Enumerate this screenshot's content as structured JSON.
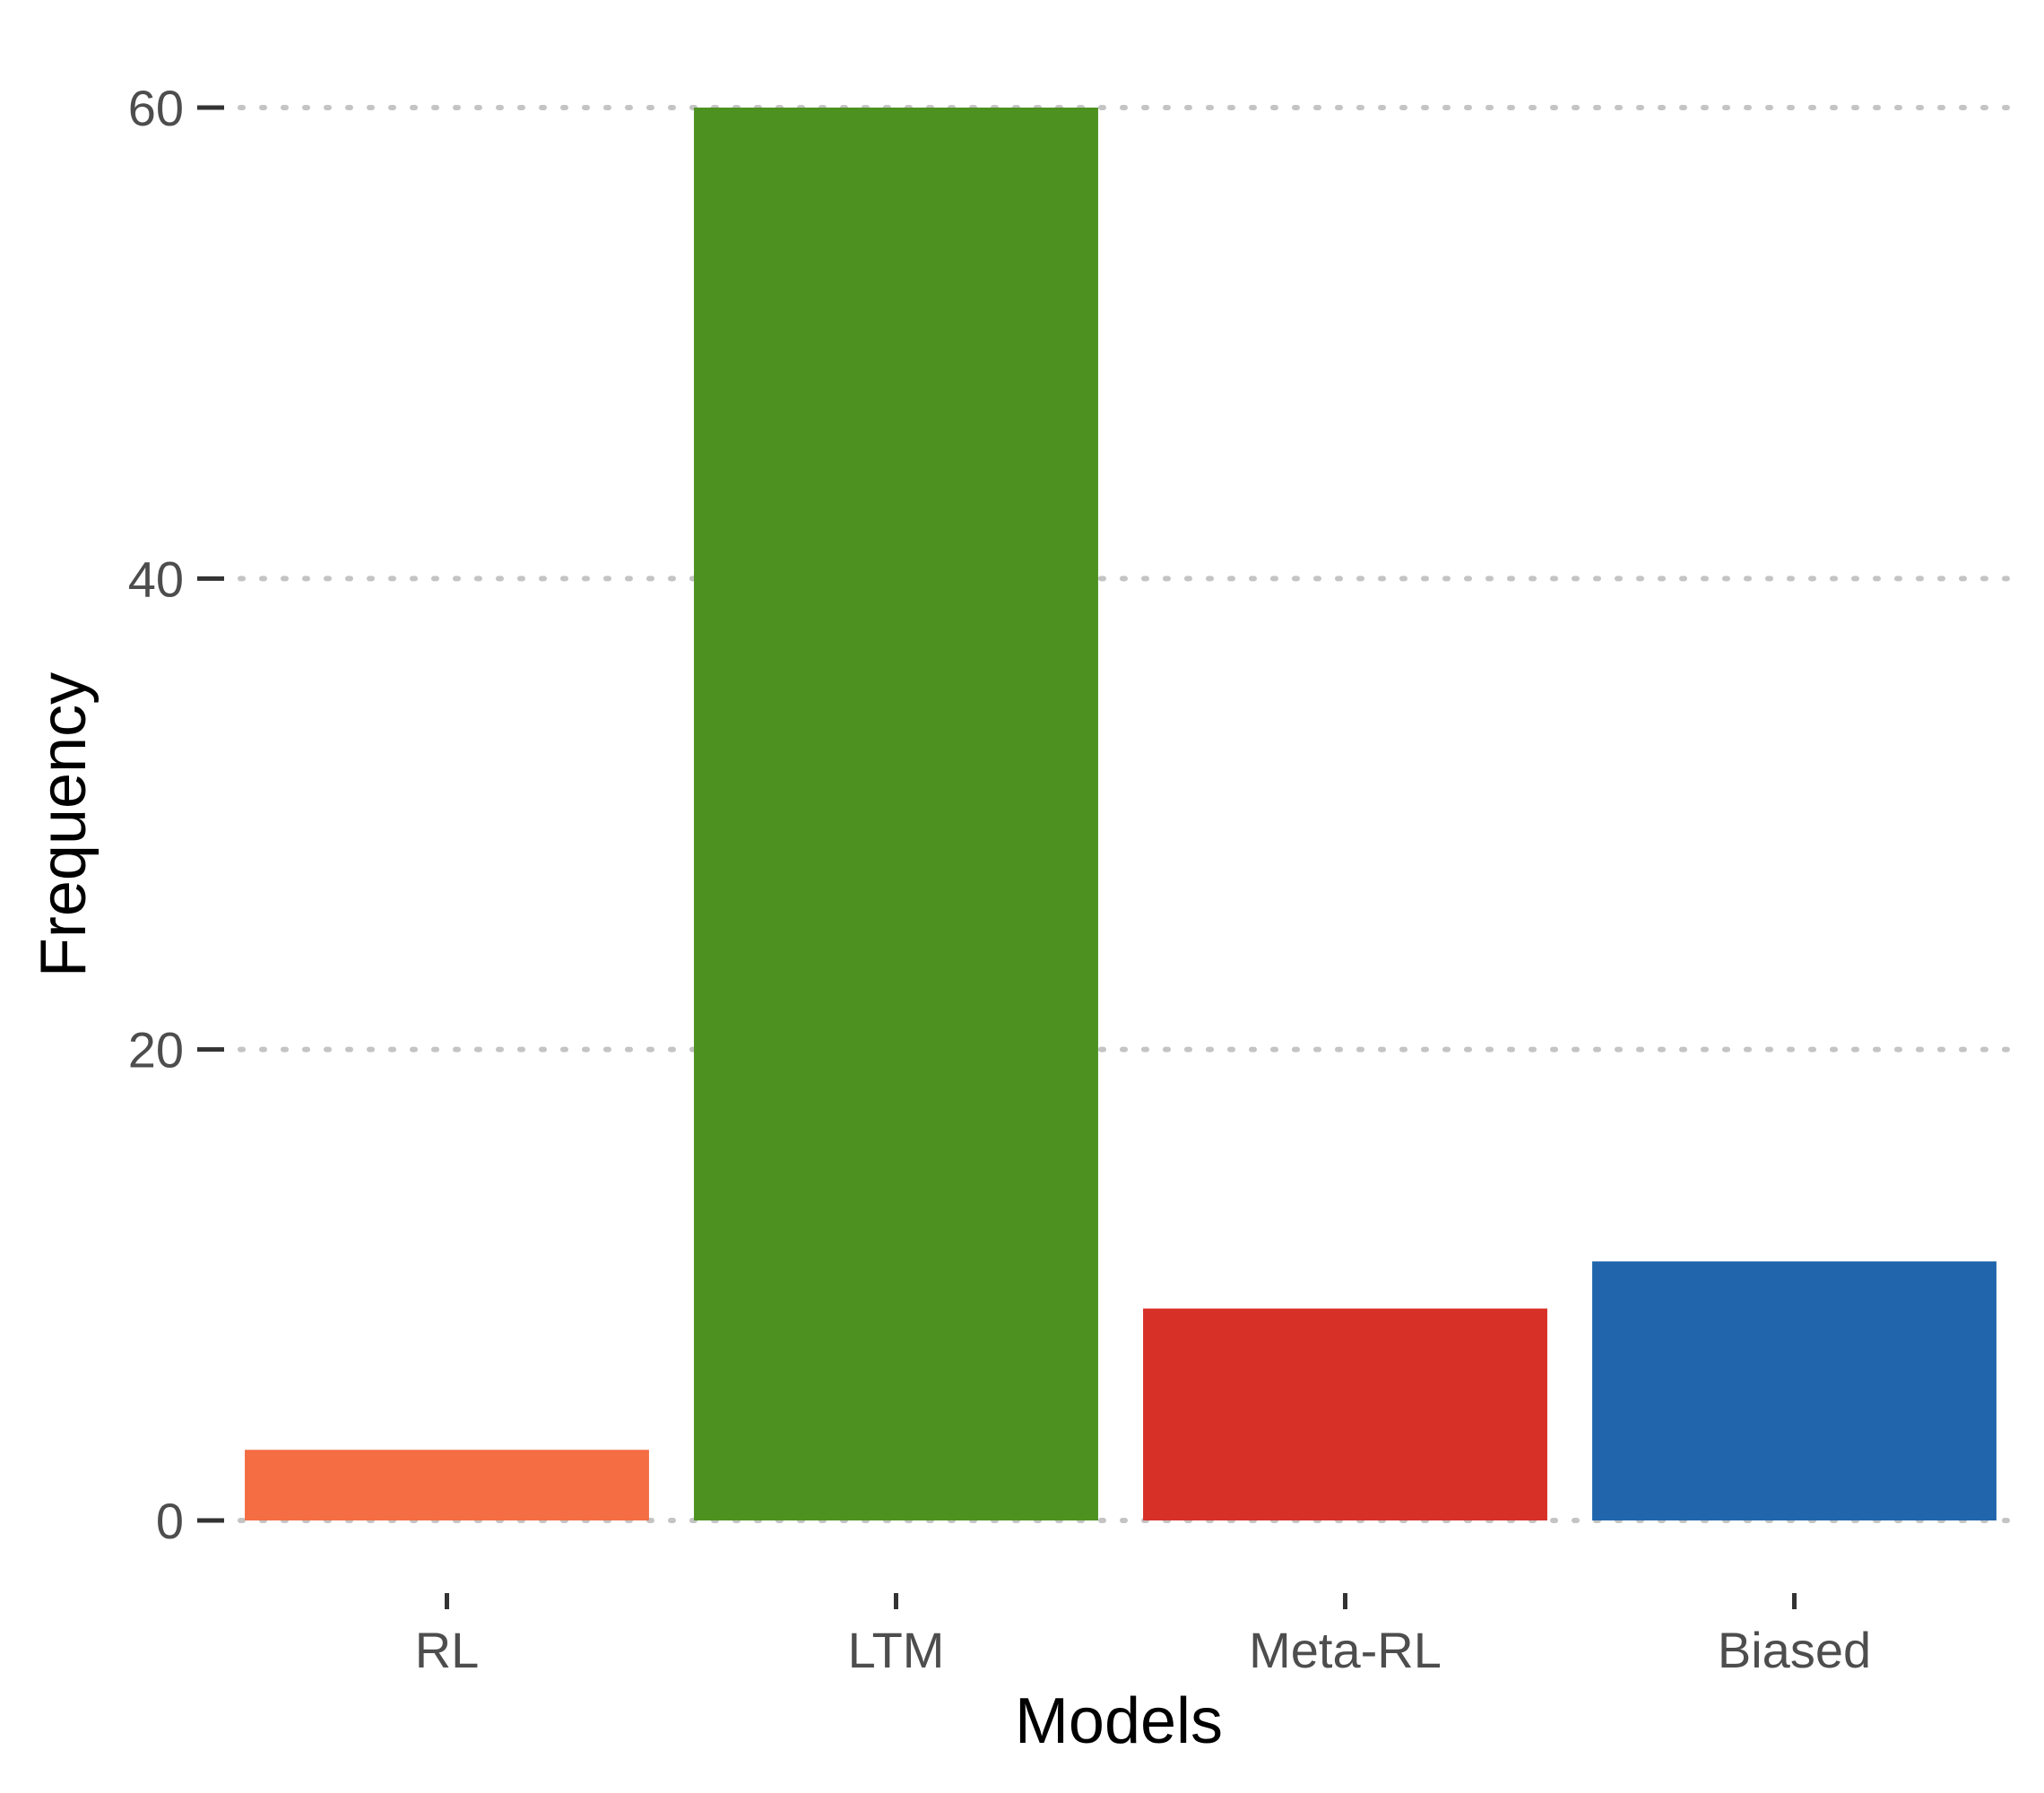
{
  "chart_data": {
    "type": "bar",
    "categories": [
      "RL",
      "LTM",
      "Meta-RL",
      "Biased"
    ],
    "values": [
      3,
      60,
      9,
      11
    ],
    "colors": [
      "#f46d43",
      "#4d9221",
      "#d73027",
      "#2166ac"
    ],
    "title": "",
    "xlabel": "Models",
    "ylabel": "Frequency",
    "ylim": [
      0,
      60
    ],
    "yticks": [
      "0",
      "20",
      "40",
      "60"
    ],
    "grid": true,
    "legend": "none"
  }
}
